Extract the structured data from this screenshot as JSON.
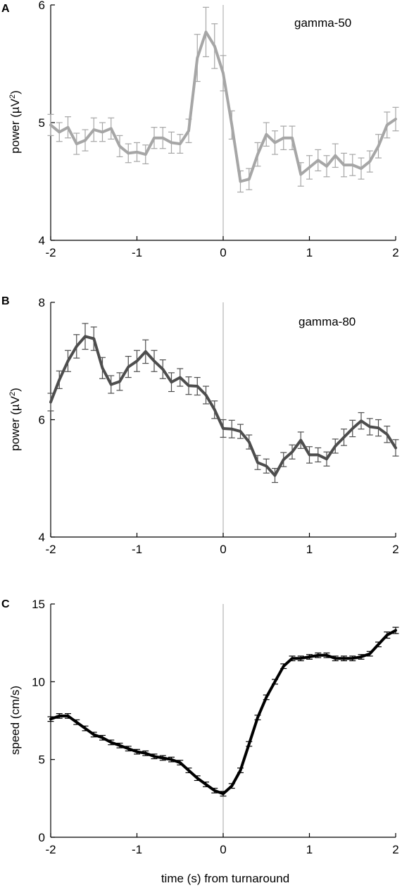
{
  "xlabel": "time (s) from turnaround",
  "chart_data": [
    {
      "type": "line",
      "panel_label": "A",
      "annotation": "gamma-50",
      "ylabel_prefix": "power (µV",
      "ylabel_sup": "2",
      "ylabel_suffix": ")",
      "xlim": [
        -2,
        2
      ],
      "ylim": [
        4,
        6
      ],
      "xticks": [
        -2,
        -1,
        0,
        1,
        2
      ],
      "yticks": [
        4,
        5,
        6
      ],
      "xtick_labels": [
        "-2",
        "-1",
        "0",
        "1",
        "2"
      ],
      "ytick_labels": [
        "4",
        "5",
        "6"
      ],
      "line_color": "#a6a6a6",
      "err_color": "#a6a6a6",
      "x": [
        -2.0,
        -1.9,
        -1.8,
        -1.7,
        -1.6,
        -1.5,
        -1.4,
        -1.3,
        -1.2,
        -1.1,
        -1.0,
        -0.9,
        -0.8,
        -0.7,
        -0.6,
        -0.5,
        -0.4,
        -0.3,
        -0.2,
        -0.1,
        0.0,
        0.1,
        0.2,
        0.3,
        0.4,
        0.5,
        0.6,
        0.7,
        0.8,
        0.9,
        1.0,
        1.1,
        1.2,
        1.3,
        1.4,
        1.5,
        1.6,
        1.7,
        1.8,
        1.9,
        2.0
      ],
      "y": [
        4.98,
        4.92,
        4.96,
        4.82,
        4.85,
        4.94,
        4.92,
        4.95,
        4.8,
        4.74,
        4.75,
        4.73,
        4.87,
        4.87,
        4.83,
        4.82,
        4.93,
        5.55,
        5.77,
        5.65,
        5.42,
        4.98,
        4.5,
        4.52,
        4.73,
        4.9,
        4.83,
        4.87,
        4.87,
        4.56,
        4.62,
        4.68,
        4.63,
        4.72,
        4.64,
        4.64,
        4.61,
        4.67,
        4.8,
        4.98,
        5.03
      ],
      "err": [
        0.09,
        0.08,
        0.09,
        0.09,
        0.09,
        0.1,
        0.08,
        0.09,
        0.09,
        0.08,
        0.08,
        0.08,
        0.09,
        0.09,
        0.09,
        0.08,
        0.1,
        0.2,
        0.21,
        0.19,
        0.15,
        0.12,
        0.09,
        0.09,
        0.1,
        0.1,
        0.1,
        0.1,
        0.1,
        0.1,
        0.1,
        0.09,
        0.09,
        0.1,
        0.1,
        0.09,
        0.09,
        0.09,
        0.1,
        0.11,
        0.1
      ]
    },
    {
      "type": "line",
      "panel_label": "B",
      "annotation": "gamma-80",
      "ylabel_prefix": "power (µV",
      "ylabel_sup": "2",
      "ylabel_suffix": ")",
      "xlim": [
        -2,
        2
      ],
      "ylim": [
        4,
        8
      ],
      "xticks": [
        -2,
        -1,
        0,
        1,
        2
      ],
      "yticks": [
        4,
        6,
        8
      ],
      "xtick_labels": [
        "-2",
        "-1",
        "0",
        "1",
        "2"
      ],
      "ytick_labels": [
        "4",
        "6",
        "8"
      ],
      "line_color": "#4d4d4d",
      "err_color": "#4d4d4d",
      "x": [
        -2.0,
        -1.9,
        -1.8,
        -1.7,
        -1.6,
        -1.5,
        -1.4,
        -1.3,
        -1.2,
        -1.1,
        -1.0,
        -0.9,
        -0.8,
        -0.7,
        -0.6,
        -0.5,
        -0.4,
        -0.3,
        -0.2,
        -0.1,
        0.0,
        0.1,
        0.2,
        0.3,
        0.4,
        0.5,
        0.6,
        0.7,
        0.8,
        0.9,
        1.0,
        1.1,
        1.2,
        1.3,
        1.4,
        1.5,
        1.6,
        1.7,
        1.8,
        1.9,
        2.0
      ],
      "y": [
        6.3,
        6.68,
        7.0,
        7.25,
        7.42,
        7.38,
        6.88,
        6.6,
        6.65,
        6.9,
        7.0,
        7.16,
        7.0,
        6.86,
        6.64,
        6.72,
        6.58,
        6.57,
        6.42,
        6.17,
        5.85,
        5.84,
        5.8,
        5.62,
        5.27,
        5.21,
        5.05,
        5.32,
        5.45,
        5.65,
        5.4,
        5.4,
        5.33,
        5.55,
        5.7,
        5.85,
        5.98,
        5.88,
        5.86,
        5.75,
        5.52
      ],
      "err": [
        0.15,
        0.15,
        0.18,
        0.2,
        0.22,
        0.2,
        0.18,
        0.15,
        0.15,
        0.18,
        0.18,
        0.2,
        0.18,
        0.16,
        0.16,
        0.15,
        0.15,
        0.15,
        0.15,
        0.15,
        0.15,
        0.15,
        0.12,
        0.12,
        0.12,
        0.12,
        0.12,
        0.12,
        0.12,
        0.14,
        0.14,
        0.12,
        0.12,
        0.12,
        0.14,
        0.14,
        0.14,
        0.14,
        0.14,
        0.14,
        0.14
      ]
    },
    {
      "type": "line",
      "panel_label": "C",
      "annotation": "",
      "ylabel_prefix": "speed (cm/s)",
      "ylabel_sup": "",
      "ylabel_suffix": "",
      "xlim": [
        -2,
        2
      ],
      "ylim": [
        0,
        15
      ],
      "xticks": [
        -2,
        -1,
        0,
        1,
        2
      ],
      "yticks": [
        0,
        5,
        10,
        15
      ],
      "xtick_labels": [
        "-2",
        "-1",
        "0",
        "1",
        "2"
      ],
      "ytick_labels": [
        "0",
        "5",
        "10",
        "15"
      ],
      "line_color": "#000000",
      "err_color": "#000000",
      "x": [
        -2.0,
        -1.9,
        -1.8,
        -1.7,
        -1.6,
        -1.5,
        -1.4,
        -1.3,
        -1.2,
        -1.1,
        -1.0,
        -0.9,
        -0.8,
        -0.7,
        -0.6,
        -0.5,
        -0.4,
        -0.3,
        -0.2,
        -0.1,
        0.0,
        0.1,
        0.2,
        0.3,
        0.4,
        0.5,
        0.6,
        0.7,
        0.8,
        0.9,
        1.0,
        1.1,
        1.2,
        1.3,
        1.4,
        1.5,
        1.6,
        1.7,
        1.8,
        1.9,
        2.0
      ],
      "y": [
        7.6,
        7.8,
        7.8,
        7.4,
        7.0,
        6.6,
        6.4,
        6.1,
        5.9,
        5.7,
        5.5,
        5.4,
        5.2,
        5.1,
        5.0,
        4.8,
        4.3,
        3.8,
        3.4,
        3.0,
        2.8,
        3.3,
        4.3,
        6.0,
        7.7,
        9.0,
        10.0,
        11.0,
        11.5,
        11.5,
        11.6,
        11.7,
        11.7,
        11.5,
        11.5,
        11.5,
        11.6,
        11.8,
        12.4,
        13.0,
        13.3
      ],
      "err": [
        0.15,
        0.15,
        0.15,
        0.15,
        0.15,
        0.15,
        0.15,
        0.15,
        0.15,
        0.15,
        0.15,
        0.15,
        0.15,
        0.15,
        0.15,
        0.15,
        0.15,
        0.15,
        0.15,
        0.15,
        0.15,
        0.15,
        0.15,
        0.15,
        0.15,
        0.15,
        0.15,
        0.15,
        0.15,
        0.15,
        0.15,
        0.15,
        0.15,
        0.15,
        0.15,
        0.15,
        0.15,
        0.15,
        0.15,
        0.2,
        0.2
      ]
    }
  ]
}
